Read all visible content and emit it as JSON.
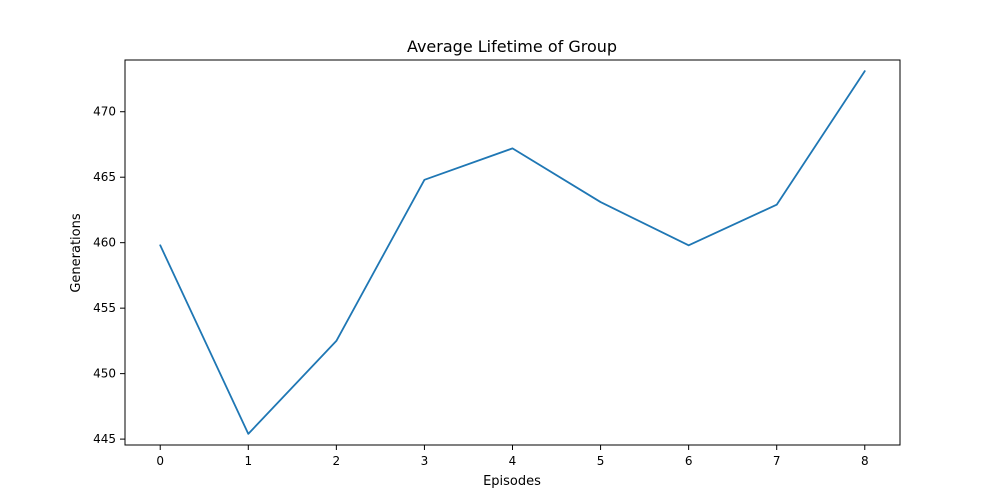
{
  "chart_data": {
    "type": "line",
    "title": "Average Lifetime of Group",
    "xlabel": "Episodes",
    "ylabel": "Generations",
    "x": [
      0,
      1,
      2,
      3,
      4,
      5,
      6,
      7,
      8
    ],
    "series": [
      {
        "values": [
          459.8,
          445.4,
          452.5,
          464.8,
          467.2,
          463.1,
          459.8,
          462.9,
          473.1
        ],
        "color": "#1f77b4"
      }
    ],
    "xticks": [
      "0",
      "1",
      "2",
      "3",
      "4",
      "5",
      "6",
      "7",
      "8"
    ],
    "yticks": [
      "445",
      "450",
      "455",
      "460",
      "465",
      "470"
    ],
    "xlim": [
      -0.4,
      8.4
    ],
    "ylim": [
      444.55,
      473.95
    ],
    "grid": false,
    "legend": false
  }
}
